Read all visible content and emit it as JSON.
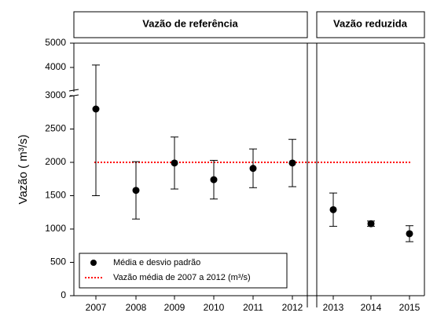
{
  "chart_data": {
    "type": "errorbar",
    "panels": [
      {
        "title": "Vazão de referência"
      },
      {
        "title": "Vazão reduzida"
      }
    ],
    "y_label": "Vazão ( m³/s)",
    "categories": [
      "2007",
      "2008",
      "2009",
      "2010",
      "2011",
      "2012",
      "2013",
      "2014",
      "2015"
    ],
    "series": [
      {
        "name": "Média e desvio padrão",
        "color": "#000000",
        "values": [
          2800,
          1580,
          1990,
          1740,
          1910,
          1990,
          1290,
          1080,
          930
        ],
        "errors": [
          1300,
          430,
          390,
          290,
          290,
          355,
          250,
          40,
          120
        ]
      }
    ],
    "reference_line": {
      "name": "Vazão média de 2007 a 2012 (m³/s)",
      "value": 2000,
      "color": "#ff0000"
    },
    "ylim": [
      0,
      5000
    ],
    "ybreak": 3000,
    "yticks": [
      0,
      500,
      1000,
      1500,
      2000,
      2500,
      3000,
      4000,
      5000
    ],
    "legend": "lower left"
  }
}
